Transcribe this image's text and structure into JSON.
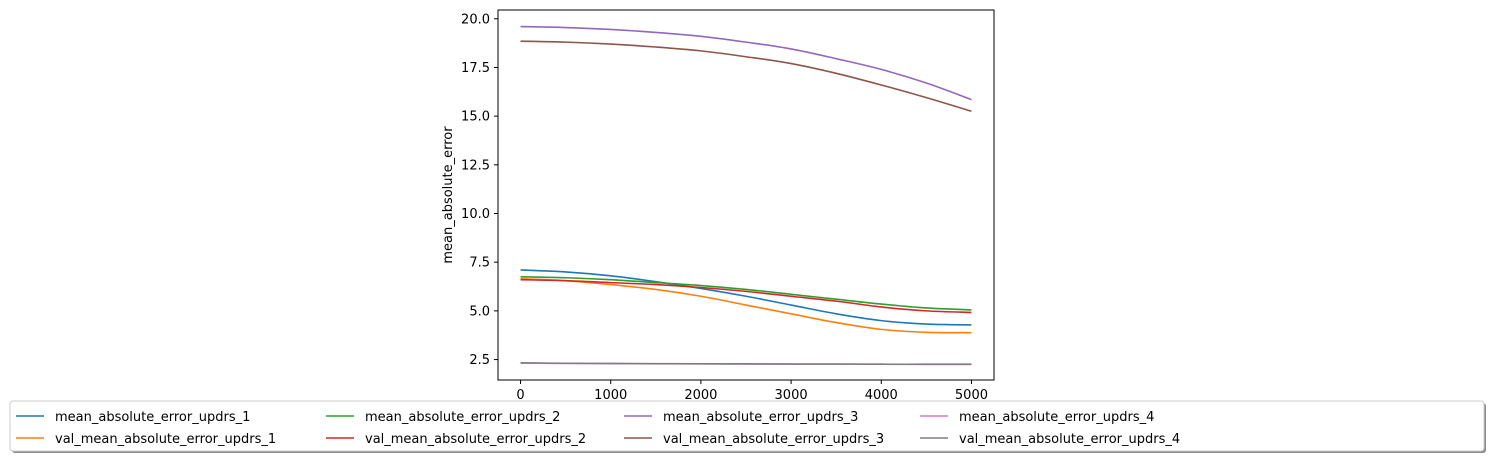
{
  "chart_data": {
    "type": "line",
    "title": "",
    "xlabel": "",
    "ylabel": "mean_absolute_error",
    "xlim": [
      -250,
      5250
    ],
    "ylim": [
      1.45,
      20.45
    ],
    "x_ticks": [
      0,
      1000,
      2000,
      3000,
      4000,
      5000
    ],
    "x_tick_labels": [
      "0",
      "1000",
      "2000",
      "3000",
      "4000",
      "5000"
    ],
    "y_ticks": [
      2.5,
      5.0,
      7.5,
      10.0,
      12.5,
      15.0,
      17.5,
      20.0
    ],
    "y_tick_labels": [
      "2.5",
      "5.0",
      "7.5",
      "10.0",
      "12.5",
      "15.0",
      "17.5",
      "20.0"
    ],
    "grid": false,
    "legend_position": "bottom",
    "legend_columns": 5,
    "x": [
      0,
      500,
      1000,
      1500,
      2000,
      2500,
      3000,
      3500,
      4000,
      4500,
      5000
    ],
    "series": [
      {
        "name": "mean_absolute_error_updrs_1",
        "color": "#1f77b4",
        "values": [
          7.1,
          7.0,
          6.8,
          6.5,
          6.15,
          5.75,
          5.3,
          4.85,
          4.5,
          4.32,
          4.28
        ]
      },
      {
        "name": "val_mean_absolute_error_updrs_1",
        "color": "#ff7f0e",
        "values": [
          6.65,
          6.55,
          6.35,
          6.1,
          5.75,
          5.3,
          4.85,
          4.4,
          4.05,
          3.9,
          3.88
        ]
      },
      {
        "name": "mean_absolute_error_updrs_2",
        "color": "#2ca02c",
        "values": [
          6.75,
          6.7,
          6.6,
          6.45,
          6.3,
          6.1,
          5.85,
          5.6,
          5.35,
          5.15,
          5.05
        ]
      },
      {
        "name": "val_mean_absolute_error_updrs_2",
        "color": "#d62728",
        "values": [
          6.6,
          6.55,
          6.45,
          6.35,
          6.2,
          6.0,
          5.75,
          5.5,
          5.2,
          5.0,
          4.92
        ]
      },
      {
        "name": "mean_absolute_error_updrs_3",
        "color": "#9467bd",
        "values": [
          19.6,
          19.55,
          19.45,
          19.3,
          19.1,
          18.8,
          18.45,
          17.95,
          17.4,
          16.7,
          15.85
        ]
      },
      {
        "name": "val_mean_absolute_error_updrs_3",
        "color": "#8c564b",
        "values": [
          18.85,
          18.8,
          18.7,
          18.55,
          18.35,
          18.05,
          17.7,
          17.2,
          16.6,
          15.95,
          15.25
        ]
      },
      {
        "name": "mean_absolute_error_updrs_4",
        "color": "#e377c2",
        "values": [
          2.32,
          2.3,
          2.29,
          2.28,
          2.28,
          2.27,
          2.27,
          2.26,
          2.26,
          2.25,
          2.25
        ]
      },
      {
        "name": "val_mean_absolute_error_updrs_4",
        "color": "#7f7f7f",
        "values": [
          2.33,
          2.31,
          2.3,
          2.29,
          2.28,
          2.28,
          2.27,
          2.27,
          2.26,
          2.26,
          2.26
        ]
      }
    ]
  }
}
